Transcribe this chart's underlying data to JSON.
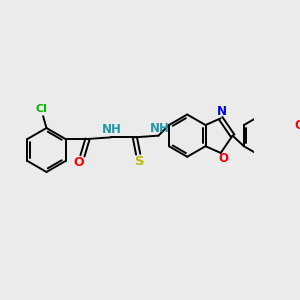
{
  "background_color": "#ebebeb",
  "bond_color": "#000000",
  "atom_colors": {
    "Cl": "#00bb00",
    "O": "#ff0000",
    "NH": "#2299aa",
    "S": "#bbbb00",
    "N": "#0000ee",
    "OCH3_O": "#ff0000"
  },
  "figsize": [
    3.0,
    3.0
  ],
  "dpi": 100
}
